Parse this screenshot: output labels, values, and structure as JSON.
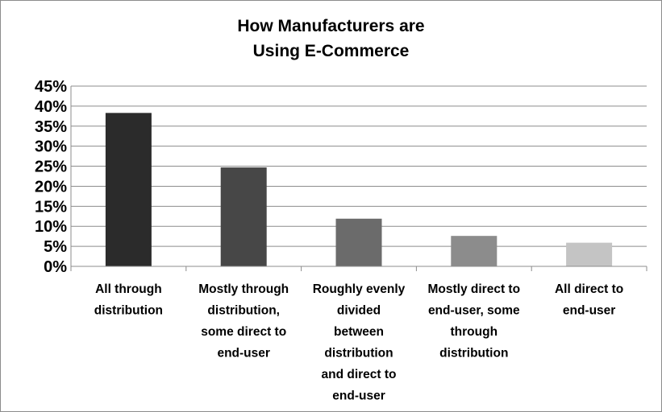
{
  "chart_data": {
    "type": "bar",
    "title_lines": [
      "How Manufacturers are",
      "Using E-Commerce"
    ],
    "categories": [
      [
        "All through",
        "distribution"
      ],
      [
        "Mostly through",
        "distribution,",
        "some direct to",
        "end-user"
      ],
      [
        "Roughly evenly",
        "divided",
        "between",
        "distribution",
        "and direct to",
        "end-user"
      ],
      [
        "Mostly direct to",
        "end-user, some",
        "through",
        "distribution"
      ],
      [
        "All direct to",
        "end-user"
      ]
    ],
    "values": [
      38.3,
      24.7,
      11.9,
      7.6,
      5.9
    ],
    "bar_colors": [
      "#2b2b2b",
      "#474747",
      "#6b6b6b",
      "#8c8c8c",
      "#c4c4c4"
    ],
    "ylim": [
      0,
      45
    ],
    "yticks": [
      "0%",
      "5%",
      "10%",
      "15%",
      "20%",
      "25%",
      "30%",
      "35%",
      "40%",
      "45%"
    ],
    "grid": true,
    "legend": "none"
  }
}
